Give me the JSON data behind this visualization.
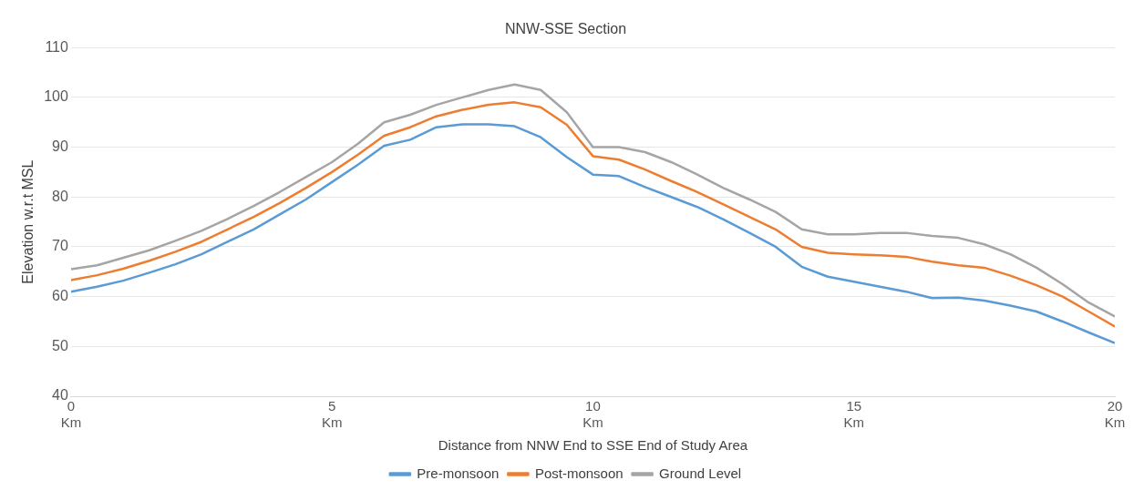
{
  "chart_data": {
    "type": "line",
    "title": "NNW-SSE Section",
    "xlabel": "Distance from NNW End to SSE End of Study Area",
    "ylabel": "Elevation w.r.t MSL",
    "x": [
      0,
      0.5,
      1,
      1.5,
      2,
      2.5,
      3,
      3.5,
      4,
      4.5,
      5,
      5.5,
      6,
      6.5,
      7,
      7.5,
      8,
      8.5,
      9,
      9.5,
      10,
      10.5,
      11,
      11.5,
      12,
      12.5,
      13,
      13.5,
      14,
      14.5,
      15,
      15.5,
      16,
      16.5,
      17,
      17.5,
      18,
      18.5,
      19,
      19.5,
      20
    ],
    "series": [
      {
        "name": "Pre-monsoon",
        "color": "#5b9bd5",
        "values": [
          61,
          62,
          63.2,
          64.8,
          66.5,
          68.5,
          71,
          73.5,
          76.5,
          79.5,
          83,
          86.5,
          90.3,
          91.5,
          94,
          94.6,
          94.6,
          94.2,
          92,
          88,
          84.5,
          84.2,
          82,
          80,
          78,
          75.5,
          72.8,
          70,
          66,
          64,
          63,
          62,
          61,
          59.7,
          59.8,
          59.2,
          58.2,
          57,
          55,
          52.8,
          50.7
        ]
      },
      {
        "name": "Post-monsoon",
        "color": "#ed7d31",
        "values": [
          63.3,
          64.3,
          65.6,
          67.2,
          69,
          71,
          73.5,
          76,
          78.8,
          81.8,
          85,
          88.5,
          92.3,
          94,
          96.2,
          97.5,
          98.5,
          99,
          98,
          94.5,
          88.2,
          87.5,
          85.5,
          83.2,
          81,
          78.5,
          76,
          73.5,
          70,
          68.8,
          68.5,
          68.3,
          68,
          67,
          66.3,
          65.8,
          64.2,
          62.3,
          60,
          57,
          54
        ]
      },
      {
        "name": "Ground Level",
        "color": "#a5a5a5",
        "values": [
          65.5,
          66.3,
          67.8,
          69.3,
          71.2,
          73.2,
          75.6,
          78.2,
          81,
          84,
          87,
          90.7,
          95,
          96.5,
          98.5,
          100,
          101.5,
          102.6,
          101.5,
          97,
          90,
          90,
          89,
          87,
          84.5,
          81.8,
          79.5,
          77,
          73.5,
          72.5,
          72.5,
          72.8,
          72.8,
          72.2,
          71.8,
          70.5,
          68.5,
          65.8,
          62.5,
          58.8,
          56
        ]
      }
    ],
    "xlim": [
      0,
      20
    ],
    "xticks": [
      {
        "value": 0,
        "label": "0\nKm"
      },
      {
        "value": 5,
        "label": "5\nKm"
      },
      {
        "value": 10,
        "label": "10\nKm"
      },
      {
        "value": 15,
        "label": "15\nKm"
      },
      {
        "value": 20,
        "label": "20\nKm"
      }
    ],
    "ylim": [
      40,
      110
    ],
    "yticks": [
      40,
      50,
      60,
      70,
      80,
      90,
      100,
      110
    ],
    "grid": "y",
    "legend": "bottom",
    "marker": "none",
    "line_style": "solid"
  }
}
